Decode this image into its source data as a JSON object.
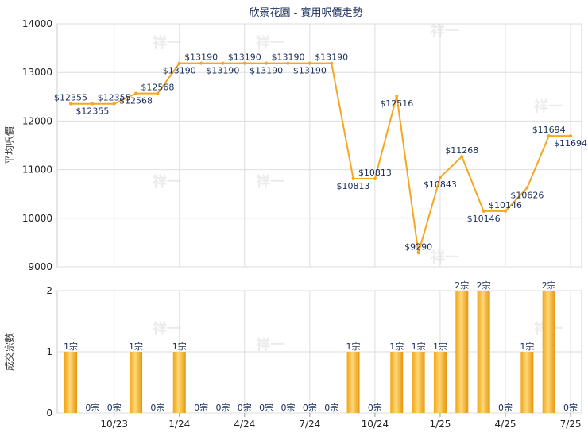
{
  "chart_data": [
    {
      "type": "line",
      "title": "欣景花園 - 實用呎價走勢",
      "ylabel": "平均呎價",
      "ylim": [
        9000,
        14000
      ],
      "yticks": [
        9000,
        10000,
        11000,
        12000,
        13000,
        14000
      ],
      "grid": true,
      "line_color": "#f5a623",
      "label_color": "#1a2f5c",
      "points": [
        {
          "m": 0,
          "value": 12355,
          "label": "$12355"
        },
        {
          "m": 1,
          "value": 12355,
          "label": "$12355"
        },
        {
          "m": 2,
          "value": 12355,
          "label": "$12355"
        },
        {
          "m": 3,
          "value": 12568,
          "label": "$12568"
        },
        {
          "m": 4,
          "value": 12568,
          "label": "$12568"
        },
        {
          "m": 5,
          "value": 13190,
          "label": "$13190"
        },
        {
          "m": 6,
          "value": 13190,
          "label": "$13190"
        },
        {
          "m": 7,
          "value": 13190,
          "label": "$13190"
        },
        {
          "m": 8,
          "value": 13190,
          "label": "$13190"
        },
        {
          "m": 9,
          "value": 13190,
          "label": "$13190"
        },
        {
          "m": 10,
          "value": 13190,
          "label": "$13190"
        },
        {
          "m": 11,
          "value": 13190,
          "label": "$13190"
        },
        {
          "m": 12,
          "value": 13190,
          "label": "$13190"
        },
        {
          "m": 13,
          "value": 10813,
          "label": "$10813"
        },
        {
          "m": 14,
          "value": 10813,
          "label": "$10813"
        },
        {
          "m": 15,
          "value": 12516,
          "label": "$12516"
        },
        {
          "m": 16,
          "value": 9290,
          "label": "$9290"
        },
        {
          "m": 17,
          "value": 10843,
          "label": "$10843"
        },
        {
          "m": 18,
          "value": 11268,
          "label": "$11268"
        },
        {
          "m": 19,
          "value": 10146,
          "label": "$10146"
        },
        {
          "m": 20,
          "value": 10146,
          "label": "$10146"
        },
        {
          "m": 21,
          "value": 10626,
          "label": "$10626"
        },
        {
          "m": 22,
          "value": 11694,
          "label": "$11694"
        },
        {
          "m": 23,
          "value": 11694,
          "label": "$11694"
        }
      ]
    },
    {
      "type": "bar",
      "ylabel": "成交宗數",
      "ylim": [
        0,
        2
      ],
      "yticks": [
        0,
        1,
        2
      ],
      "grid": true,
      "bar_color": "#f5a623",
      "label_color": "#1a2f5c",
      "x_ticks": [
        {
          "m": 2,
          "label": "10/23"
        },
        {
          "m": 5,
          "label": "1/24"
        },
        {
          "m": 8,
          "label": "4/24"
        },
        {
          "m": 11,
          "label": "7/24"
        },
        {
          "m": 14,
          "label": "10/24"
        },
        {
          "m": 17,
          "label": "1/25"
        },
        {
          "m": 20,
          "label": "4/25"
        },
        {
          "m": 23,
          "label": "7/25"
        }
      ],
      "bars": [
        {
          "m": 0,
          "value": 1,
          "label": "1宗"
        },
        {
          "m": 1,
          "value": 0,
          "label": "0宗"
        },
        {
          "m": 2,
          "value": 0,
          "label": "0宗"
        },
        {
          "m": 3,
          "value": 1,
          "label": "1宗"
        },
        {
          "m": 4,
          "value": 0,
          "label": "0宗"
        },
        {
          "m": 5,
          "value": 1,
          "label": "1宗"
        },
        {
          "m": 6,
          "value": 0,
          "label": "0宗"
        },
        {
          "m": 7,
          "value": 0,
          "label": "0宗"
        },
        {
          "m": 8,
          "value": 0,
          "label": "0宗"
        },
        {
          "m": 9,
          "value": 0,
          "label": "0宗"
        },
        {
          "m": 10,
          "value": 0,
          "label": "0宗"
        },
        {
          "m": 11,
          "value": 0,
          "label": "0宗"
        },
        {
          "m": 12,
          "value": 0,
          "label": "0宗"
        },
        {
          "m": 13,
          "value": 1,
          "label": "1宗"
        },
        {
          "m": 14,
          "value": 0,
          "label": "0宗"
        },
        {
          "m": 15,
          "value": 1,
          "label": "1宗"
        },
        {
          "m": 16,
          "value": 1,
          "label": "1宗"
        },
        {
          "m": 17,
          "value": 1,
          "label": "1宗"
        },
        {
          "m": 18,
          "value": 2,
          "label": "2宗"
        },
        {
          "m": 19,
          "value": 2,
          "label": "2宗"
        },
        {
          "m": 20,
          "value": 0,
          "label": "0宗"
        },
        {
          "m": 21,
          "value": 1,
          "label": "1宗"
        },
        {
          "m": 22,
          "value": 2,
          "label": "2宗"
        },
        {
          "m": 23,
          "value": 0,
          "label": "0宗"
        }
      ]
    }
  ],
  "watermark": {
    "text": "祥一"
  }
}
